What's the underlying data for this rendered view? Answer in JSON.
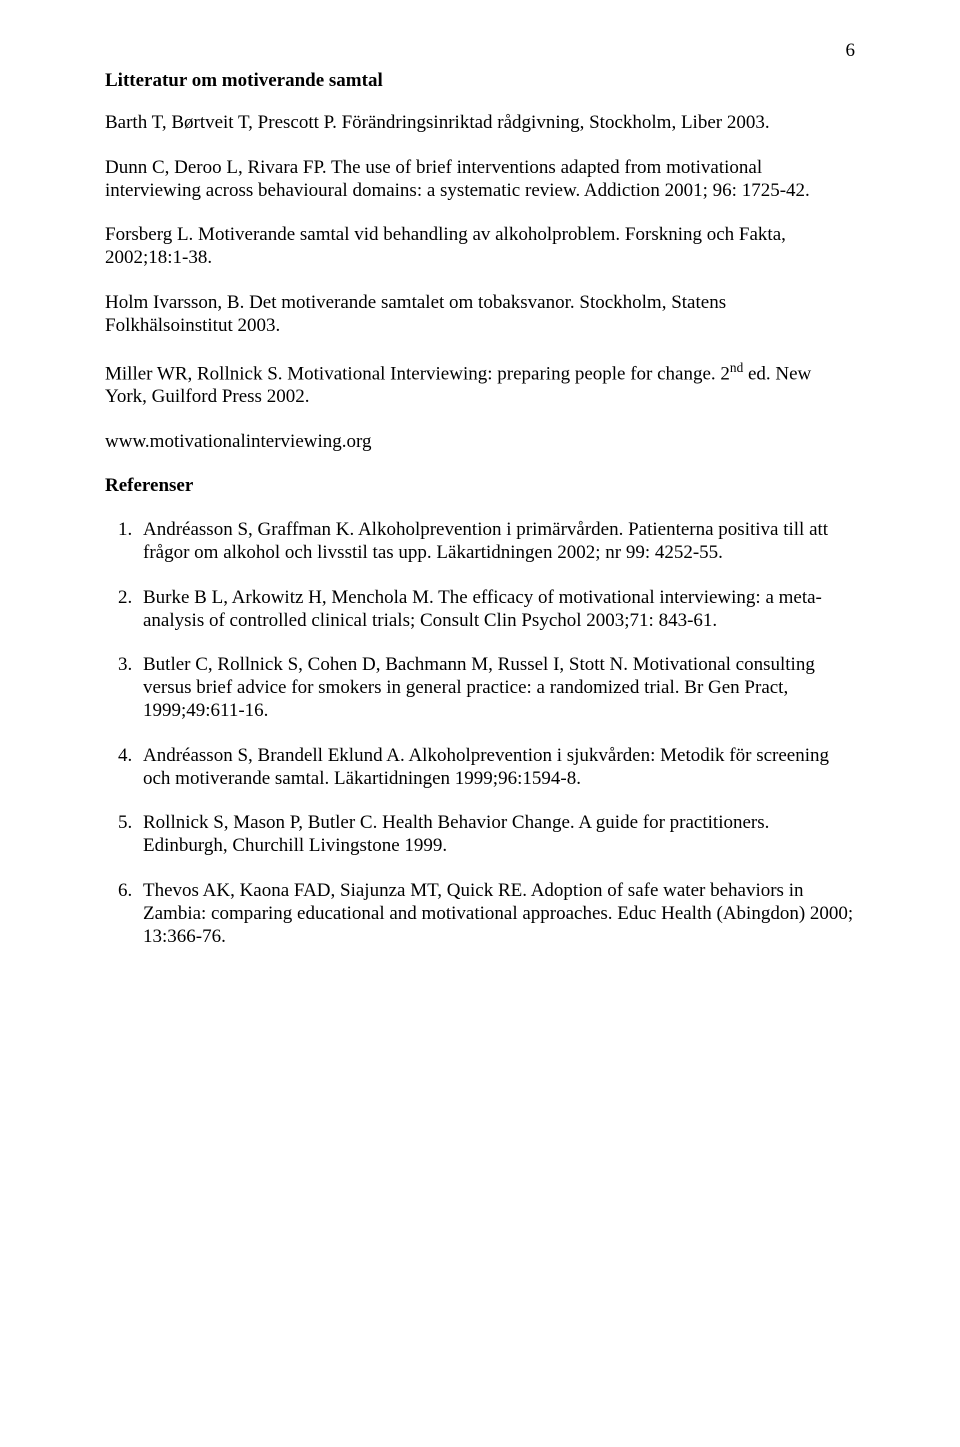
{
  "page_number": "6",
  "title": "Litteratur om motiverande samtal",
  "literature": [
    "Barth T, Børtveit T, Prescott P. Förändringsinriktad rådgivning, Stockholm, Liber 2003.",
    "Dunn C, Deroo L, Rivara FP. The use of brief interventions adapted from motivational interviewing across behavioural domains: a systematic review. Addiction 2001; 96: 1725-42.",
    "Forsberg L. Motiverande samtal vid behandling av alkoholproblem. Forskning och Fakta, 2002;18:1-38.",
    "Holm Ivarsson, B. Det motiverande samtalet om tobaksvanor. Stockholm, Statens Folkhälsoinstitut 2003.",
    "Miller WR, Rollnick S. Motivational Interviewing: preparing people for change. 2nd ed. New York, Guilford Press 2002.",
    "www.motivationalinterviewing.org"
  ],
  "ref_heading": "Referenser",
  "references": [
    "Andréasson S, Graffman K. Alkoholprevention i primärvården. Patienterna positiva till att frågor om alkohol och livsstil tas upp. Läkartidningen 2002; nr 99: 4252-55.",
    "Burke B L, Arkowitz H, Menchola M. The efficacy of motivational interviewing: a meta-analysis of controlled clinical trials;  Consult Clin Psychol 2003;71: 843-61.",
    "Butler C, Rollnick S, Cohen D, Bachmann M, Russel I, Stott N. Motivational consulting versus brief advice for smokers in general practice: a randomized trial. Br Gen Pract, 1999;49:611-16.",
    "Andréasson S, Brandell Eklund A. Alkoholprevention i sjukvården: Metodik för screening och motiverande samtal. Läkartidningen 1999;96:1594-8.",
    "Rollnick S, Mason P, Butler C. Health Behavior Change. A guide for practitioners. Edinburgh, Churchill Livingstone 1999.",
    "Thevos AK, Kaona  FAD, Siajunza MT, Quick RE. Adoption of safe water behaviors in Zambia: comparing educational and motivational approaches. Educ Health  (Abingdon) 2000; 13:366-76."
  ]
}
